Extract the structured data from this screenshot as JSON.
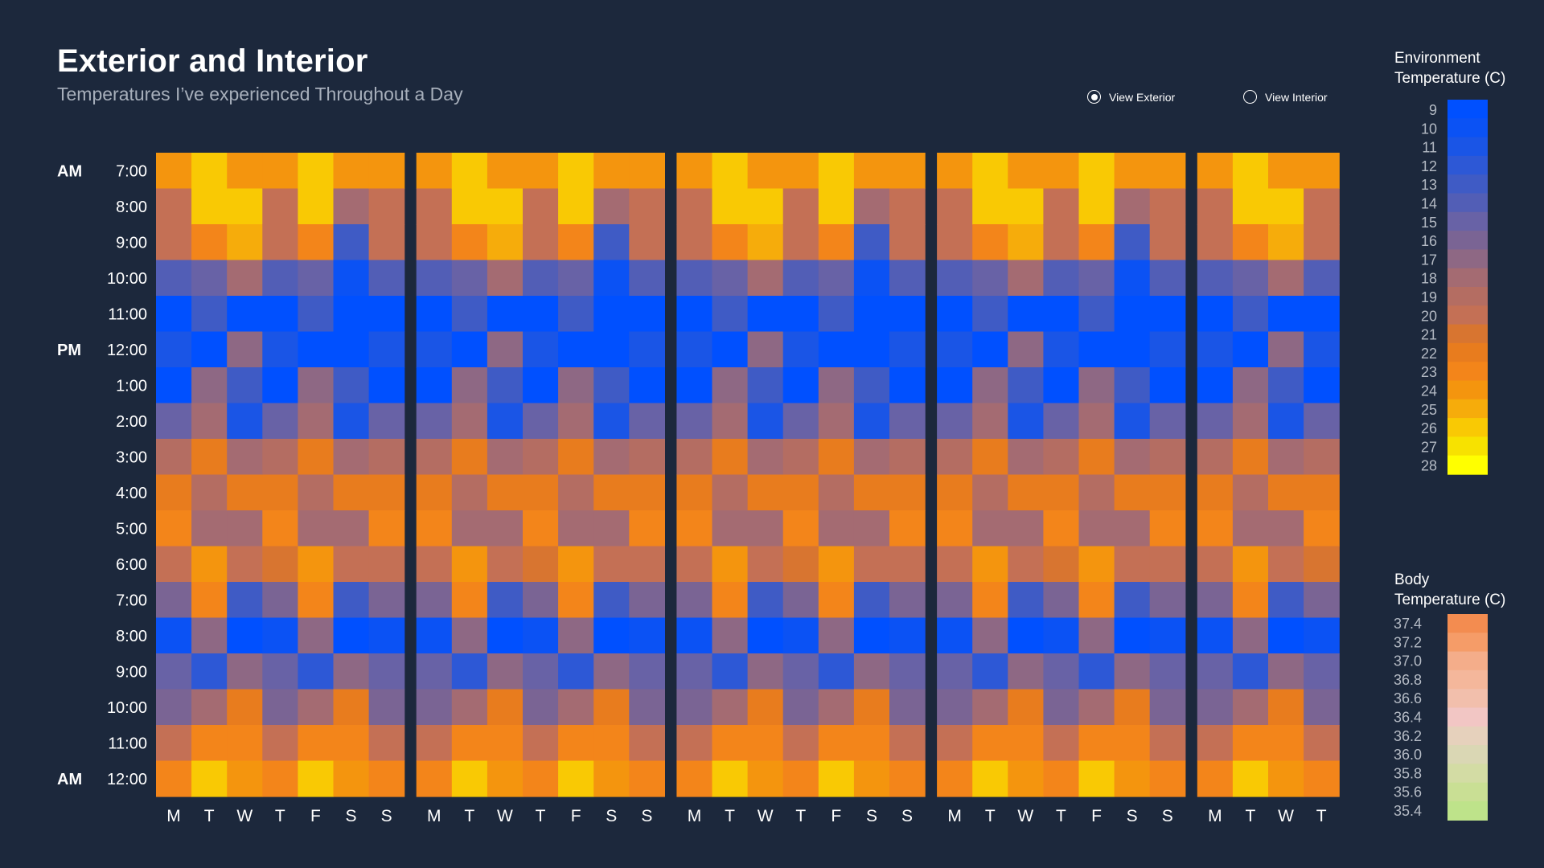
{
  "title": "Exterior and Interior",
  "subtitle": "Temperatures I’ve experienced Throughout a Day",
  "view_toggle": {
    "exterior_label": "View Exterior",
    "interior_label": "View Interior",
    "selected": "exterior"
  },
  "legends": {
    "environment": {
      "title_line1": "Environment",
      "title_line2": "Temperature (C)",
      "labels": [
        "9",
        "10",
        "11",
        "12",
        "13",
        "14",
        "15",
        "16",
        "17",
        "18",
        "19",
        "20",
        "21",
        "22",
        "23",
        "24",
        "25",
        "26",
        "27",
        "28"
      ],
      "colors": [
        "#0050ff",
        "#0b52f4",
        "#1a55e6",
        "#2d58d6",
        "#3f5bc5",
        "#525eb6",
        "#6862a6",
        "#7a6494",
        "#8e6884",
        "#a46b72",
        "#b46d62",
        "#c47055",
        "#d87530",
        "#e87c1e",
        "#f3851a",
        "#f4950e",
        "#f6ac0b",
        "#f9c904",
        "#f7e200",
        "#ffff00"
      ]
    },
    "body": {
      "title_line1": "Body",
      "title_line2": "Temperature (C)",
      "labels": [
        "37.4",
        "37.2",
        "37.0",
        "36.8",
        "36.6",
        "36.4",
        "36.2",
        "36.0",
        "35.8",
        "35.6",
        "35.4"
      ],
      "colors": [
        "#f38c50",
        "#f59c68",
        "#f4ad8a",
        "#f4b79b",
        "#f2bfac",
        "#f2c6c4",
        "#e6d1bc",
        "#dad7b4",
        "#d3dca4",
        "#c9df94",
        "#bee38a"
      ]
    }
  },
  "chart_data": {
    "type": "heatmap",
    "title": "Exterior and Interior",
    "subtitle": "Temperatures I’ve experienced Throughout a Day",
    "value_unit": "Environment Temperature (C)",
    "y_period_labels": {
      "0": "AM",
      "5": "PM",
      "17": "AM"
    },
    "y_categories": [
      "7:00",
      "8:00",
      "9:00",
      "10:00",
      "11:00",
      "12:00",
      "1:00",
      "2:00",
      "3:00",
      "4:00",
      "5:00",
      "6:00",
      "7:00",
      "8:00",
      "9:00",
      "10:00",
      "11:00",
      "12:00"
    ],
    "weeks": [
      {
        "days": [
          "M",
          "T",
          "W",
          "T",
          "F",
          "S",
          "S"
        ]
      },
      {
        "days": [
          "M",
          "T",
          "W",
          "T",
          "F",
          "S",
          "S"
        ]
      },
      {
        "days": [
          "M",
          "T",
          "W",
          "T",
          "F",
          "S",
          "S"
        ]
      },
      {
        "days": [
          "M",
          "T",
          "W",
          "T",
          "F",
          "S",
          "S"
        ]
      },
      {
        "days": [
          "M",
          "T",
          "W",
          "T"
        ]
      }
    ],
    "weekly_pattern": [
      [
        24,
        26,
        24,
        24,
        26,
        24,
        24
      ],
      [
        20,
        26,
        26,
        20,
        26,
        18,
        20
      ],
      [
        20,
        23,
        25,
        20,
        23,
        13,
        20
      ],
      [
        14,
        15,
        18,
        14,
        15,
        10,
        14
      ],
      [
        9,
        13,
        9,
        9,
        13,
        9,
        9
      ],
      [
        11,
        9,
        17,
        11,
        9,
        9,
        11
      ],
      [
        9,
        17,
        13,
        9,
        17,
        13,
        9
      ],
      [
        15,
        18,
        11,
        15,
        18,
        11,
        15
      ],
      [
        19,
        22,
        18,
        19,
        22,
        18,
        19
      ],
      [
        22,
        19,
        22,
        22,
        19,
        22,
        22
      ],
      [
        23,
        18,
        18,
        23,
        18,
        18,
        23
      ],
      [
        20,
        24,
        20,
        21,
        24,
        20,
        20
      ],
      [
        16,
        23,
        13,
        16,
        23,
        13,
        16
      ],
      [
        10,
        17,
        9,
        10,
        17,
        9,
        10
      ],
      [
        15,
        12,
        17,
        15,
        12,
        17,
        15
      ],
      [
        16,
        18,
        22,
        16,
        18,
        22,
        16
      ],
      [
        20,
        23,
        23,
        20,
        23,
        23,
        20
      ],
      [
        23,
        26,
        24,
        23,
        26,
        24,
        23
      ]
    ]
  }
}
